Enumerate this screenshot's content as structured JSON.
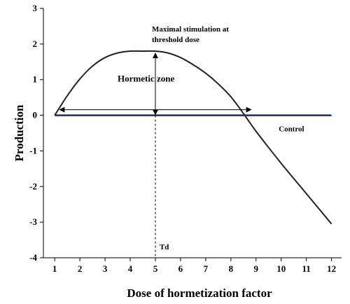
{
  "chart_data": {
    "type": "line",
    "title": "",
    "xlabel": "Dose of hormetization factor",
    "ylabel": "Production",
    "xlim": [
      0.55,
      12.4
    ],
    "ylim": [
      -4,
      3
    ],
    "x_ticks": [
      1,
      2,
      3,
      4,
      5,
      6,
      7,
      8,
      9,
      10,
      11,
      12
    ],
    "y_ticks": [
      3,
      2,
      1,
      0,
      -1,
      -2,
      -3,
      -4
    ],
    "grid": false,
    "legend": "none",
    "series": [
      {
        "name": "",
        "color": "#222222",
        "x": [
          1,
          1.5,
          2,
          2.5,
          3,
          3.5,
          4,
          4.5,
          5,
          5.5,
          6,
          6.5,
          7,
          7.5,
          8,
          8.5,
          9,
          10,
          11,
          12
        ],
        "y": [
          0,
          0.55,
          1.02,
          1.38,
          1.62,
          1.75,
          1.8,
          1.8,
          1.8,
          1.75,
          1.62,
          1.42,
          1.18,
          0.88,
          0.52,
          0.05,
          -0.45,
          -1.35,
          -2.2,
          -3.05
        ]
      },
      {
        "name": "Control",
        "color": "#1f2a6e",
        "x": [
          1,
          12
        ],
        "y": [
          0,
          0
        ]
      }
    ],
    "annotations": {
      "maximal": "Maximal stimulation at\nthreshold dose",
      "hormetic_zone": "Hormetic zone",
      "control": "Control",
      "td": "Td"
    },
    "hormetic_zone_range": [
      1.2,
      8.8
    ],
    "threshold_dose": 5,
    "max_value": 1.8
  }
}
